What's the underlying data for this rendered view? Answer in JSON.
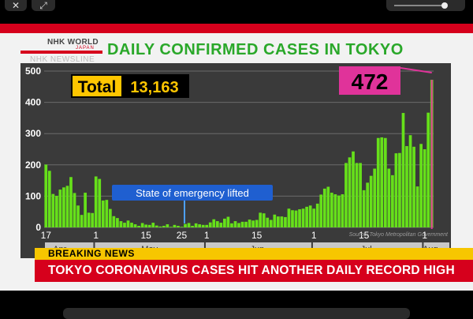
{
  "viewer": {
    "close_glyph": "✕",
    "expand_glyph": "⤢"
  },
  "broadcast": {
    "logo_text": "NHK WORLD",
    "logo_subtext": "JAPAN",
    "program": "NHK NEWSLINE",
    "title": "DAILY CONFIRMED CASES IN TOKYO",
    "source": "Source: Tokyo Metropolitan Government",
    "breaking_label": "BREAKING NEWS",
    "headline": "TOKYO CORONAVIRUS CASES HIT ANOTHER DAILY RECORD HIGH",
    "colors": {
      "accent_red": "#d6001c",
      "title_green": "#2aa82a",
      "bar_green": "#66e01a",
      "highlight_pink": "#e0339a",
      "breaking_yellow": "#f7c600"
    }
  },
  "chart_data": {
    "type": "bar",
    "title": "DAILY CONFIRMED CASES IN TOKYO",
    "ylim": [
      0,
      500
    ],
    "yticks": [
      0,
      100,
      200,
      300,
      400,
      500
    ],
    "total_label": "Total",
    "total_value": "13,163",
    "highlight_value": "472",
    "annotation": "State of emergency lifted",
    "day_ticks": [
      "17",
      "1",
      "15",
      "25",
      "1",
      "15",
      "1",
      "15",
      "1"
    ],
    "month_labels": [
      "Apr.",
      "May",
      "Jun.",
      "Jul.",
      "Aug."
    ],
    "start_date": "Apr. 17",
    "end_date": "Aug. 1",
    "values": [
      201,
      181,
      107,
      101,
      121,
      128,
      133,
      161,
      110,
      70,
      40,
      111,
      47,
      46,
      163,
      155,
      86,
      88,
      59,
      36,
      30,
      20,
      15,
      22,
      15,
      10,
      5,
      14,
      9,
      8,
      15,
      6,
      3,
      5,
      10,
      2,
      8,
      5,
      2,
      11,
      14,
      5,
      13,
      10,
      8,
      8,
      16,
      26,
      20,
      15,
      28,
      34,
      13,
      20,
      14,
      18,
      18,
      25,
      22,
      24,
      47,
      45,
      31,
      24,
      41,
      35,
      35,
      33,
      60,
      55,
      54,
      58,
      60,
      66,
      70,
      60,
      76,
      105,
      124,
      130,
      111,
      106,
      102,
      106,
      206,
      224,
      243,
      206,
      206,
      119,
      143,
      165,
      188,
      286,
      288,
      286,
      188,
      167,
      237,
      238,
      366,
      260,
      295,
      258,
      131,
      267,
      250,
      367,
      472
    ]
  }
}
